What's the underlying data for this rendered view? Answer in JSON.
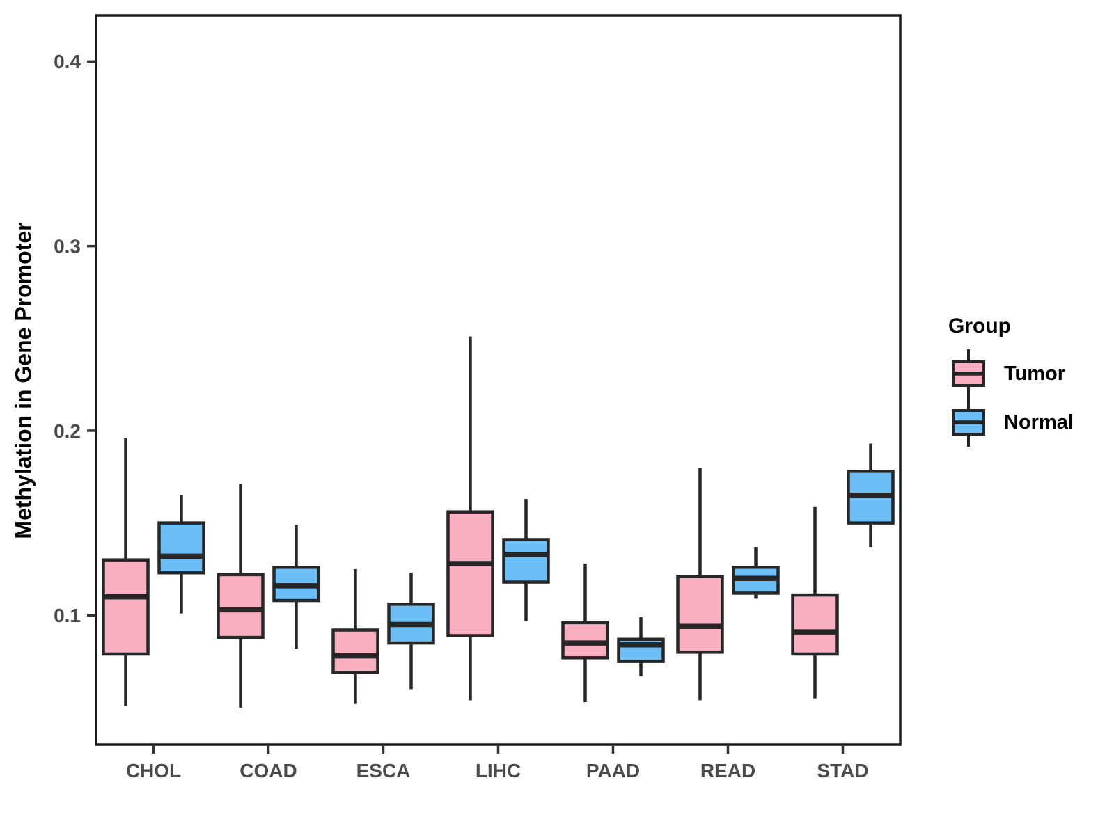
{
  "chart_data": {
    "type": "boxplot",
    "title": "",
    "xlabel": "",
    "ylabel": "Methylation in Gene Promoter",
    "categories": [
      "CHOL",
      "COAD",
      "ESCA",
      "LIHC",
      "PAAD",
      "READ",
      "STAD"
    ],
    "yticks": [
      0.1,
      0.2,
      0.3,
      0.4
    ],
    "ytick_labels": [
      "0.1",
      "0.2",
      "0.3",
      "0.4"
    ],
    "ylim": [
      0.03,
      0.425
    ],
    "grid": false,
    "legend": {
      "title": "Group",
      "position": "right"
    },
    "colors": {
      "tumor_fill": "#FAAFC1",
      "normal_fill": "#6BBEF6",
      "stroke": "#262626",
      "axis_text": "#4A4A4A",
      "axis_title": "#000000",
      "panel_border": "#1A1A1A",
      "background": "#FFFFFF"
    },
    "series": [
      {
        "name": "Tumor",
        "fill": "#FAAFC1",
        "boxes": [
          {
            "category": "CHOL",
            "min": 0.051,
            "q1": 0.079,
            "median": 0.11,
            "q3": 0.13,
            "max": 0.196
          },
          {
            "category": "COAD",
            "min": 0.05,
            "q1": 0.088,
            "median": 0.103,
            "q3": 0.122,
            "max": 0.171
          },
          {
            "category": "ESCA",
            "min": 0.052,
            "q1": 0.069,
            "median": 0.078,
            "q3": 0.092,
            "max": 0.125
          },
          {
            "category": "LIHC",
            "min": 0.054,
            "q1": 0.089,
            "median": 0.128,
            "q3": 0.156,
            "max": 0.251
          },
          {
            "category": "PAAD",
            "min": 0.053,
            "q1": 0.077,
            "median": 0.085,
            "q3": 0.096,
            "max": 0.128
          },
          {
            "category": "READ",
            "min": 0.054,
            "q1": 0.08,
            "median": 0.094,
            "q3": 0.121,
            "max": 0.18
          },
          {
            "category": "STAD",
            "min": 0.055,
            "q1": 0.079,
            "median": 0.091,
            "q3": 0.111,
            "max": 0.159
          }
        ]
      },
      {
        "name": "Normal",
        "fill": "#6BBEF6",
        "boxes": [
          {
            "category": "CHOL",
            "min": 0.101,
            "q1": 0.123,
            "median": 0.132,
            "q3": 0.15,
            "max": 0.165
          },
          {
            "category": "COAD",
            "min": 0.082,
            "q1": 0.108,
            "median": 0.116,
            "q3": 0.126,
            "max": 0.149
          },
          {
            "category": "ESCA",
            "min": 0.06,
            "q1": 0.085,
            "median": 0.095,
            "q3": 0.106,
            "max": 0.123
          },
          {
            "category": "LIHC",
            "min": 0.097,
            "q1": 0.118,
            "median": 0.133,
            "q3": 0.141,
            "max": 0.163
          },
          {
            "category": "PAAD",
            "min": 0.067,
            "q1": 0.075,
            "median": 0.084,
            "q3": 0.087,
            "max": 0.099
          },
          {
            "category": "READ",
            "min": 0.109,
            "q1": 0.112,
            "median": 0.12,
            "q3": 0.126,
            "max": 0.137
          },
          {
            "category": "STAD",
            "min": 0.137,
            "q1": 0.15,
            "median": 0.165,
            "q3": 0.178,
            "max": 0.193
          }
        ]
      }
    ]
  }
}
